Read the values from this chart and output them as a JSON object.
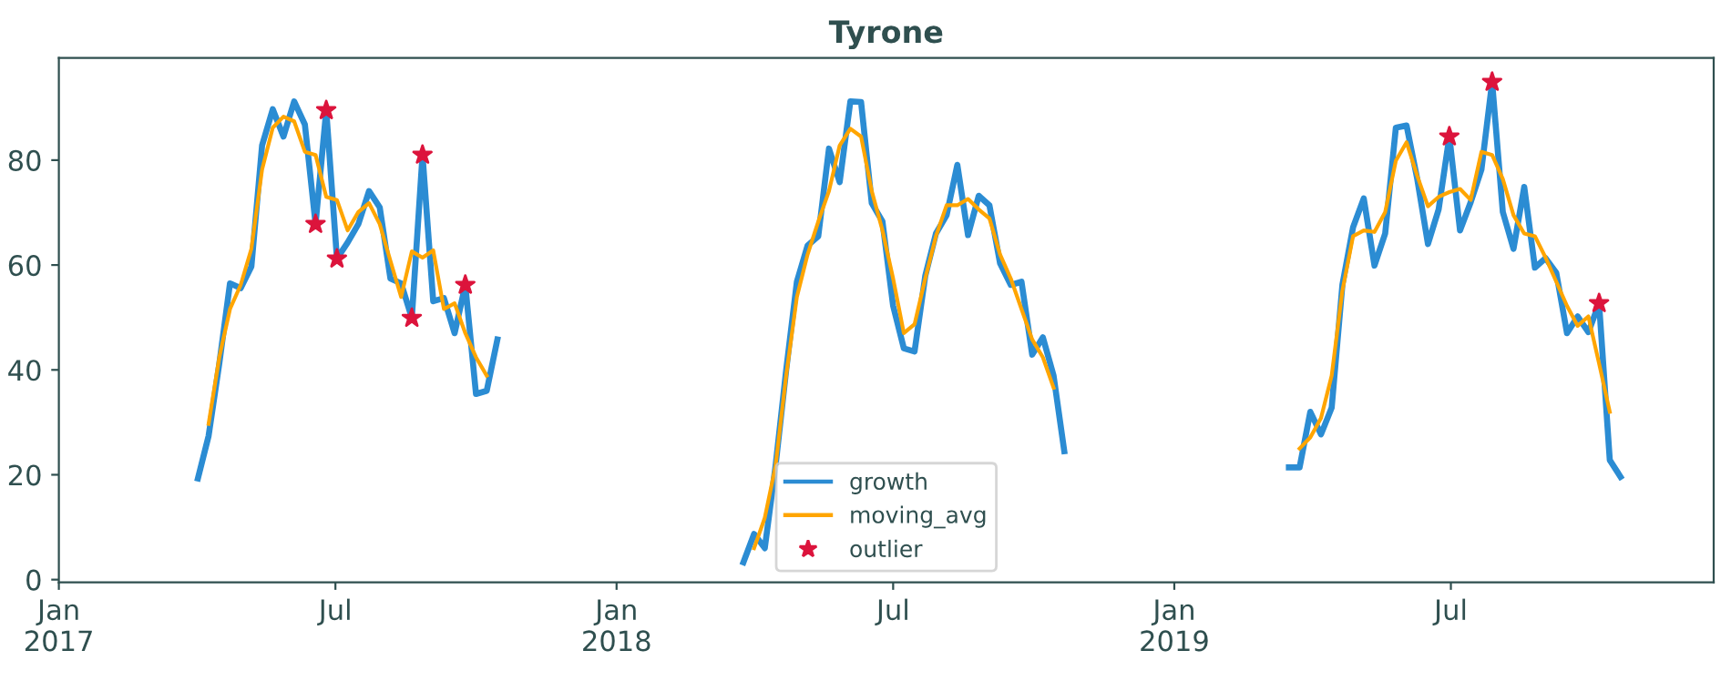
{
  "chart_data": {
    "type": "line",
    "title": "Tyrone",
    "xlim": [
      "2017-01-01",
      "2019-12-20"
    ],
    "ylim": [
      -0.5,
      99.5
    ],
    "xticks": [
      {
        "value": "2017-01-01",
        "label": "Jan\n2017"
      },
      {
        "value": "2017-07-01",
        "label": "Jul"
      },
      {
        "value": "2018-01-01",
        "label": "Jan\n2018"
      },
      {
        "value": "2018-07-01",
        "label": "Jul"
      },
      {
        "value": "2019-01-01",
        "label": "Jan\n2019"
      },
      {
        "value": "2019-07-01",
        "label": "Jul"
      }
    ],
    "yticks": [
      0,
      20,
      40,
      60,
      80
    ],
    "grid": false,
    "legend": "bottom",
    "series": [
      {
        "name": "growth",
        "color": "#2b8cd3",
        "x": [
          "2017-04-02",
          "2017-04-09",
          "2017-04-16",
          "2017-04-23",
          "2017-04-30",
          "2017-05-07",
          "2017-05-14",
          "2017-05-21",
          "2017-05-28",
          "2017-06-04",
          "2017-06-11",
          "2017-06-18",
          "2017-06-25",
          "2017-07-02",
          "2017-07-09",
          "2017-07-16",
          "2017-07-23",
          "2017-07-30",
          "2017-08-06",
          "2017-08-13",
          "2017-08-20",
          "2017-08-27",
          "2017-09-03",
          "2017-09-10",
          "2017-09-17",
          "2017-09-24",
          "2017-10-01",
          "2017-10-08",
          "2017-10-15"
        ],
        "values": [
          19.3,
          27.4,
          41.2,
          56.5,
          55.6,
          59.7,
          82.8,
          89.7,
          84.5,
          91.2,
          86.8,
          67.8,
          89.5,
          61.2,
          64.3,
          67.8,
          74.1,
          71.0,
          57.4,
          56.5,
          49.9,
          81.0,
          53.1,
          53.7,
          47.0,
          56.2,
          35.4,
          36.0,
          45.8
        ]
      },
      {
        "color": "#2b8cd3",
        "x": [
          "2018-03-25",
          "2018-04-01",
          "2018-04-08",
          "2018-04-15",
          "2018-04-22",
          "2018-04-29",
          "2018-05-06",
          "2018-05-13",
          "2018-05-20",
          "2018-05-27",
          "2018-06-03",
          "2018-06-10",
          "2018-06-17",
          "2018-06-24",
          "2018-07-01",
          "2018-07-08",
          "2018-07-15",
          "2018-07-22",
          "2018-07-29",
          "2018-08-05",
          "2018-08-12",
          "2018-08-19",
          "2018-08-26",
          "2018-09-02",
          "2018-09-09",
          "2018-09-16",
          "2018-09-23",
          "2018-09-30",
          "2018-10-07",
          "2018-10-14",
          "2018-10-21"
        ],
        "values": [
          3.3,
          8.7,
          6.0,
          21.6,
          40.0,
          56.8,
          63.7,
          65.5,
          82.2,
          75.8,
          91.2,
          91.1,
          71.8,
          68.3,
          52.2,
          44.1,
          43.5,
          57.9,
          66.0,
          69.5,
          79.1,
          65.7,
          73.2,
          71.4,
          60.3,
          56.2,
          56.8,
          42.9,
          46.2,
          38.9,
          24.5
        ]
      },
      {
        "color": "#2b8cd3",
        "x": [
          "2019-03-17",
          "2019-03-24",
          "2019-03-31",
          "2019-04-07",
          "2019-04-14",
          "2019-04-21",
          "2019-04-28",
          "2019-05-05",
          "2019-05-12",
          "2019-05-19",
          "2019-05-26",
          "2019-06-02",
          "2019-06-09",
          "2019-06-16",
          "2019-06-23",
          "2019-06-30",
          "2019-07-07",
          "2019-07-14",
          "2019-07-21",
          "2019-07-28",
          "2019-08-04",
          "2019-08-11",
          "2019-08-18",
          "2019-08-25",
          "2019-09-01",
          "2019-09-08",
          "2019-09-15",
          "2019-09-22",
          "2019-09-29",
          "2019-10-06",
          "2019-10-13",
          "2019-10-20"
        ],
        "values": [
          21.4,
          21.4,
          32.0,
          27.7,
          32.8,
          56.2,
          67.2,
          72.7,
          59.9,
          66.0,
          86.2,
          86.6,
          76.4,
          64.0,
          70.6,
          84.5,
          66.6,
          72.0,
          78.2,
          94.9,
          70.1,
          63.1,
          74.9,
          59.5,
          61.3,
          58.5,
          47.0,
          50.2,
          47.2,
          52.7,
          22.8,
          19.6
        ]
      },
      {
        "name": "moving_avg",
        "color": "#ffa500",
        "x": [
          "2017-04-09",
          "2017-04-16",
          "2017-04-23",
          "2017-04-30",
          "2017-05-07",
          "2017-05-14",
          "2017-05-21",
          "2017-05-28",
          "2017-06-04",
          "2017-06-11",
          "2017-06-18",
          "2017-06-25",
          "2017-07-02",
          "2017-07-09",
          "2017-07-16",
          "2017-07-23",
          "2017-07-30",
          "2017-08-06",
          "2017-08-13",
          "2017-08-20",
          "2017-08-27",
          "2017-09-03",
          "2017-09-10",
          "2017-09-17",
          "2017-09-24",
          "2017-10-01",
          "2017-10-08"
        ],
        "values": [
          29.7,
          42.4,
          51.6,
          56.2,
          63.1,
          78.2,
          86.2,
          88.3,
          87.4,
          81.6,
          81.0,
          73.0,
          72.4,
          66.6,
          70.1,
          71.8,
          67.8,
          60.8,
          53.9,
          62.6,
          61.4,
          62.8,
          51.6,
          52.7,
          47.0,
          42.4,
          38.9
        ]
      },
      {
        "color": "#ffa500",
        "x": [
          "2018-04-01",
          "2018-04-08",
          "2018-04-15",
          "2018-04-22",
          "2018-04-29",
          "2018-05-06",
          "2018-05-13",
          "2018-05-20",
          "2018-05-27",
          "2018-06-03",
          "2018-06-10",
          "2018-06-17",
          "2018-06-24",
          "2018-07-01",
          "2018-07-08",
          "2018-07-15",
          "2018-07-22",
          "2018-07-29",
          "2018-08-05",
          "2018-08-12",
          "2018-08-19",
          "2018-08-26",
          "2018-09-02",
          "2018-09-09",
          "2018-09-16",
          "2018-09-23",
          "2018-09-30",
          "2018-10-07",
          "2018-10-14"
        ],
        "values": [
          6.0,
          11.8,
          21.6,
          38.9,
          53.9,
          62.0,
          68.3,
          74.1,
          82.8,
          86.0,
          84.5,
          74.1,
          66.6,
          57.4,
          47.0,
          48.7,
          57.4,
          65.5,
          71.4,
          71.4,
          72.6,
          70.6,
          68.9,
          62.0,
          57.4,
          51.6,
          45.8,
          42.4,
          36.6
        ]
      },
      {
        "color": "#ffa500",
        "x": [
          "2019-03-24",
          "2019-03-31",
          "2019-04-07",
          "2019-04-14",
          "2019-04-21",
          "2019-04-28",
          "2019-05-05",
          "2019-05-12",
          "2019-05-19",
          "2019-05-26",
          "2019-06-02",
          "2019-06-09",
          "2019-06-16",
          "2019-06-23",
          "2019-06-30",
          "2019-07-07",
          "2019-07-14",
          "2019-07-21",
          "2019-07-28",
          "2019-08-04",
          "2019-08-11",
          "2019-08-18",
          "2019-08-25",
          "2019-09-01",
          "2019-09-08",
          "2019-09-15",
          "2019-09-22",
          "2019-09-29",
          "2019-10-06",
          "2019-10-13"
        ],
        "values": [
          25.0,
          27.1,
          30.8,
          38.9,
          55.1,
          65.5,
          66.6,
          66.3,
          70.1,
          79.9,
          83.4,
          77.0,
          71.2,
          73.0,
          73.9,
          74.5,
          72.4,
          81.6,
          81.0,
          76.4,
          69.5,
          66.0,
          65.5,
          61.4,
          56.8,
          52.2,
          48.4,
          50.2,
          41.2,
          32.0
        ]
      },
      {
        "name": "outlier",
        "type": "scatter",
        "marker": "star",
        "color": "#dc143c",
        "x": [
          "2017-06-18",
          "2017-06-25",
          "2017-07-02",
          "2017-08-20",
          "2017-08-27",
          "2017-09-24",
          "2019-06-30",
          "2019-07-28",
          "2019-10-06"
        ],
        "values": [
          67.8,
          89.5,
          61.2,
          49.9,
          81.0,
          56.2,
          84.5,
          94.9,
          52.7
        ]
      }
    ]
  }
}
